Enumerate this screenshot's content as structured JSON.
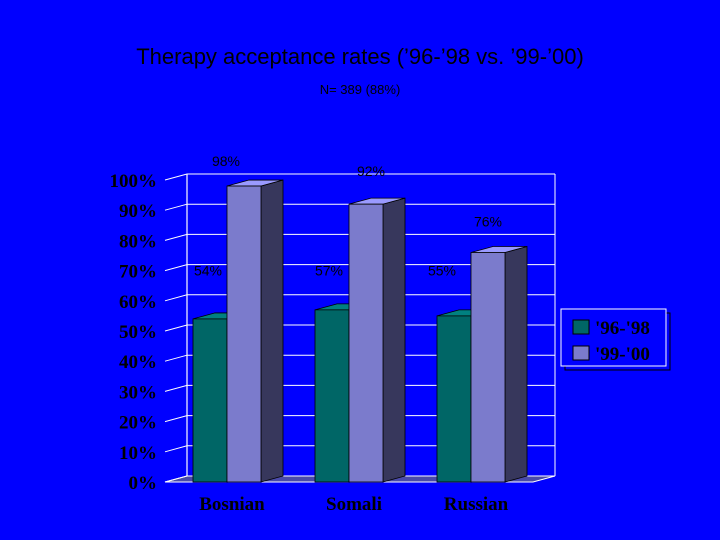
{
  "slide": {
    "title": "Therapy acceptance rates (’96-’98 vs. ’99-’00)",
    "subtitle": "N= 389  (88%)"
  },
  "chart_data": {
    "type": "bar",
    "categories": [
      "Bosnian",
      "Somali",
      "Russian"
    ],
    "series": [
      {
        "name": "'96-'98",
        "values": [
          54,
          57,
          55
        ],
        "labels": [
          "54%",
          "57%",
          "55%"
        ],
        "color": "#006666"
      },
      {
        "name": "'99-'00",
        "values": [
          98,
          92,
          76
        ],
        "labels": [
          "98%",
          "92%",
          "76%"
        ],
        "color": "#7b7bcc"
      }
    ],
    "yticks": [
      "0%",
      "10%",
      "20%",
      "30%",
      "40%",
      "50%",
      "60%",
      "70%",
      "80%",
      "90%",
      "100%"
    ],
    "ylim": [
      0,
      100
    ],
    "grid": true,
    "legend": "right",
    "colors": {
      "background": "#0000ff",
      "plot_wall": "#0000ff",
      "gridline": "#ffffff",
      "text": "#000000"
    }
  }
}
